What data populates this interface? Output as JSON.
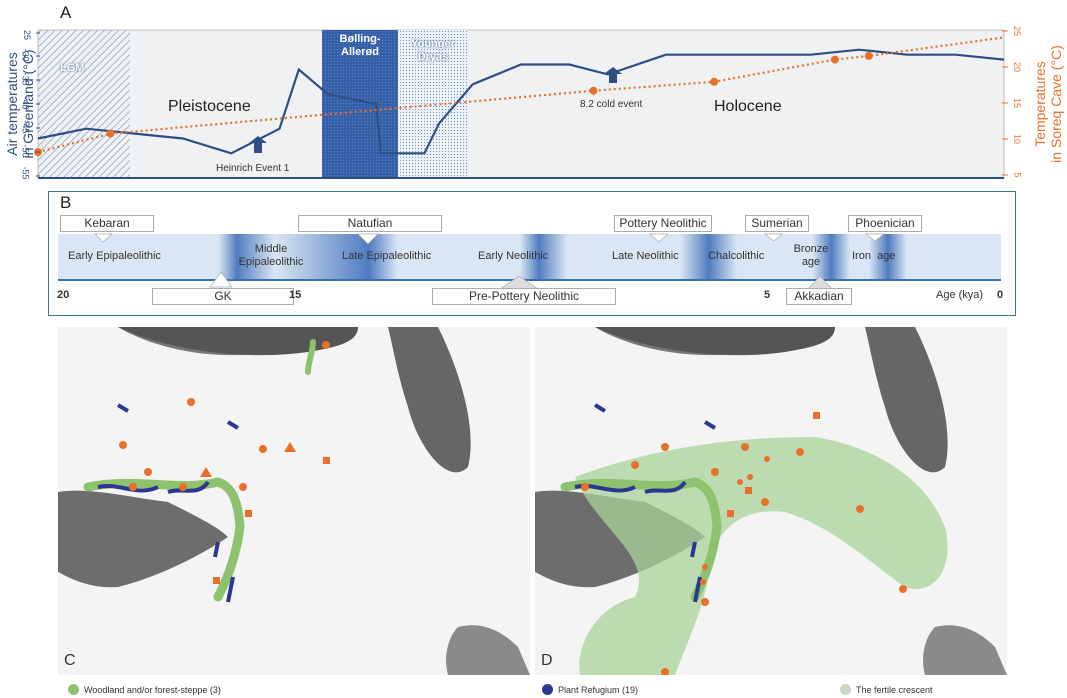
{
  "panel_a": {
    "letter": "A",
    "left_axis_label_1": "Air temperatures",
    "left_axis_label_2": "in Greenland (°C)",
    "right_axis_label_1": "Temperatures",
    "right_axis_label_2": "in Soreq Cave (°C)",
    "left_ticks": [
      "25",
      "-30",
      "-35",
      "-40",
      "-45",
      "-50",
      "-55"
    ],
    "right_ticks": [
      "25",
      "20",
      "15",
      "10",
      "5"
    ],
    "periods": {
      "lgm": "LGM",
      "bolling_1": "Bølling-",
      "bolling_2": "Allerød",
      "younger_1": "Younger",
      "younger_2": "Dryas",
      "pleistocene": "Pleistocene",
      "holocene": "Holocene"
    },
    "annotations": {
      "heinrich": "Heinrich Event 1",
      "cold_event": "8.2 cold event"
    },
    "colors": {
      "greenland": "#2f4e86",
      "soreq": "#e8702a",
      "bolling": "#3560a8"
    }
  },
  "panel_b": {
    "letter": "B",
    "top_boxes": [
      "Kebaran",
      "Natufian",
      "Pottery Neolithic",
      "Sumerian",
      "Phoenician"
    ],
    "bottom_boxes": [
      "GK",
      "Pre-Pottery Neolithic",
      "Akkadian"
    ],
    "band_labels": {
      "early_epi": "Early Epipaleolithic",
      "middle_epi_1": "Middle",
      "middle_epi_2": "Epipaleolithic",
      "late_epi": "Late Epipaleolithic",
      "early_neo": "Early Neolithic",
      "late_neo": "Late Neolithic",
      "chalco": "Chalcolithic",
      "bronze_1": "Bronze",
      "bronze_2": "age",
      "iron": "Iron  age"
    },
    "axis_ticks": [
      "20",
      "15",
      "5",
      "0"
    ],
    "axis_label": "Age (kya)"
  },
  "map_c": {
    "letter": "C"
  },
  "map_d": {
    "letter": "D"
  },
  "legend": {
    "woodland": "Woodland and/or forest-steppe (3)",
    "refugium": "Plant Refugium (19)",
    "fertile": "The fertile crescent"
  },
  "chart_data": {
    "type": "line",
    "series": [
      {
        "x_kya": [
          20,
          19,
          18,
          17,
          16,
          15,
          14.6,
          14,
          13,
          12.9,
          12,
          11.7,
          11,
          10,
          9,
          8.2,
          7,
          6,
          5,
          4,
          3,
          2,
          1,
          0
        ],
        "values": [
          -47,
          -45,
          -46,
          -47,
          -50,
          -45,
          -33,
          -38,
          -40,
          -50,
          -50,
          -44,
          -36,
          -32,
          -32,
          -34,
          -30,
          -30,
          -30,
          -30,
          -29,
          -30,
          -30,
          -31
        ]
      },
      {
        "x_kya": [
          20,
          18.5,
          8.5,
          6,
          3.5,
          2.8
        ],
        "values": [
          8.5,
          11,
          16.8,
          18,
          21,
          21.5
        ]
      }
    ],
    "left_ylim": [
      -55,
      -25
    ],
    "right_ylim": [
      5,
      25
    ],
    "xlim": [
      20,
      0
    ]
  }
}
